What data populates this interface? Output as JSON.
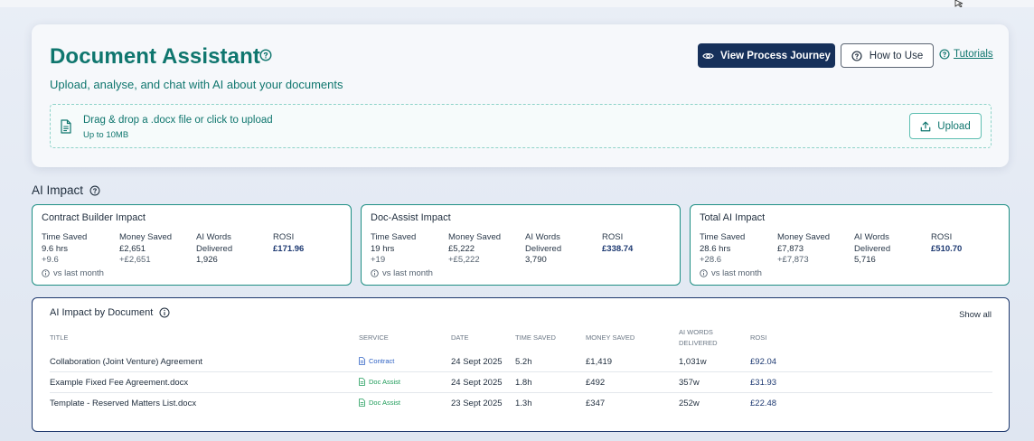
{
  "colors": {
    "brand_teal": "#0f766e",
    "navy": "#16305a",
    "contract_blue": "#2f62c4",
    "docassist_green": "#1f9c5a"
  },
  "header": {
    "title": "Document Assistant",
    "help_icon": "help-circle-icon",
    "subtitle": "Upload, analyse, and chat with AI about your documents",
    "buttons": {
      "view_journey": "View Process Journey",
      "how_to_use": "How to Use",
      "tutorials": "Tutorials"
    },
    "dropzone": {
      "main": "Drag & drop a .docx file or click to upload",
      "sub": "Up to 10MB",
      "upload_button": "Upload"
    }
  },
  "impact": {
    "section_title": "AI Impact",
    "labels": {
      "time_saved": "Time Saved",
      "money_saved": "Money Saved",
      "ai_words_1": "AI Words",
      "ai_words_2": "Delivered",
      "rosi": "ROSI",
      "vs_last_month": "vs last month"
    },
    "cards": [
      {
        "title": "Contract Builder Impact",
        "time_saved": "9.6 hrs",
        "time_delta": "+9.6",
        "money_saved": "£2,651",
        "money_delta": "+£2,651",
        "ai_words": "1,926",
        "rosi": "£171.96"
      },
      {
        "title": "Doc-Assist Impact",
        "time_saved": "19 hrs",
        "time_delta": "+19",
        "money_saved": "£5,222",
        "money_delta": "+£5,222",
        "ai_words": "3,790",
        "rosi": "£338.74"
      },
      {
        "title": "Total AI Impact",
        "time_saved": "28.6 hrs",
        "time_delta": "+28.6",
        "money_saved": "£7,873",
        "money_delta": "+£7,873",
        "ai_words": "5,716",
        "rosi": "£510.70"
      }
    ]
  },
  "by_document": {
    "title": "AI Impact by Document",
    "show_all": "Show all",
    "columns": {
      "title": "TITLE",
      "service": "SERVICE",
      "date": "DATE",
      "time_saved": "TIME SAVED",
      "money_saved": "MONEY SAVED",
      "ai_words_1": "AI WORDS",
      "ai_words_2": "DELIVERED",
      "rosi": "ROSI"
    },
    "rows": [
      {
        "title": "Collaboration (Joint Venture) Agreement",
        "service": "Contract",
        "date": "24 Sept 2025",
        "time_saved": "5.2h",
        "money_saved": "£1,419",
        "ai_words": "1,031w",
        "rosi": "£92.04"
      },
      {
        "title": "Example Fixed Fee Agreement.docx",
        "service": "Doc Assist",
        "date": "24 Sept 2025",
        "time_saved": "1.8h",
        "money_saved": "£492",
        "ai_words": "357w",
        "rosi": "£31.93"
      },
      {
        "title": "Template - Reserved Matters List.docx",
        "service": "Doc Assist",
        "date": "23 Sept 2025",
        "time_saved": "1.3h",
        "money_saved": "£347",
        "ai_words": "252w",
        "rosi": "£22.48"
      }
    ]
  }
}
